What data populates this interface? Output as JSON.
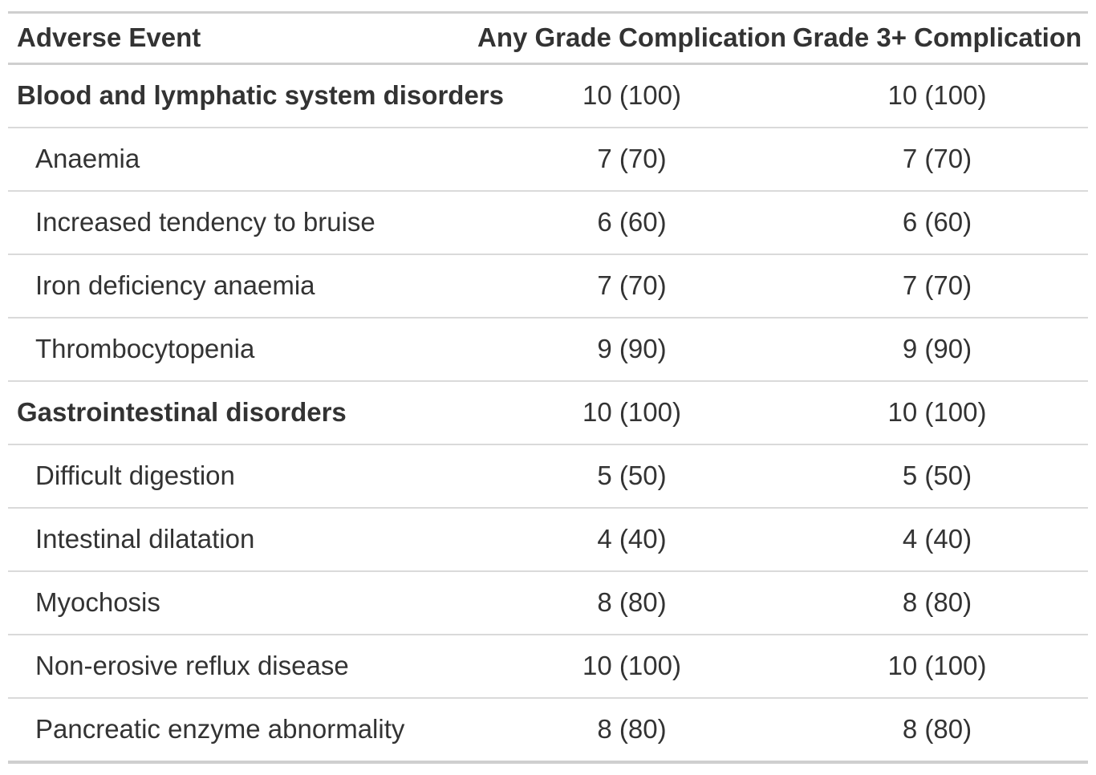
{
  "table": {
    "columns": {
      "event": "Adverse Event",
      "any_grade": "Any Grade Complication",
      "grade3plus": "Grade 3+ Complication"
    },
    "rows": [
      {
        "label": "Blood and lymphatic system disorders",
        "level": "group",
        "any_grade": "10 (100)",
        "grade3plus": "10 (100)"
      },
      {
        "label": "Anaemia",
        "level": "item",
        "any_grade": "7 (70)",
        "grade3plus": "7 (70)"
      },
      {
        "label": "Increased tendency to bruise",
        "level": "item",
        "any_grade": "6 (60)",
        "grade3plus": "6 (60)"
      },
      {
        "label": "Iron deficiency anaemia",
        "level": "item",
        "any_grade": "7 (70)",
        "grade3plus": "7 (70)"
      },
      {
        "label": "Thrombocytopenia",
        "level": "item",
        "any_grade": "9 (90)",
        "grade3plus": "9 (90)"
      },
      {
        "label": "Gastrointestinal disorders",
        "level": "group",
        "any_grade": "10 (100)",
        "grade3plus": "10 (100)"
      },
      {
        "label": "Difficult digestion",
        "level": "item",
        "any_grade": "5 (50)",
        "grade3plus": "5 (50)"
      },
      {
        "label": "Intestinal dilatation",
        "level": "item",
        "any_grade": "4 (40)",
        "grade3plus": "4 (40)"
      },
      {
        "label": "Myochosis",
        "level": "item",
        "any_grade": "8 (80)",
        "grade3plus": "8 (80)"
      },
      {
        "label": "Non-erosive reflux disease",
        "level": "item",
        "any_grade": "10 (100)",
        "grade3plus": "10 (100)"
      },
      {
        "label": "Pancreatic enzyme abnormality",
        "level": "item",
        "any_grade": "8 (80)",
        "grade3plus": "8 (80)"
      }
    ]
  },
  "colors": {
    "text": "#333333",
    "border_strong": "#cfcfcf",
    "border_light": "#dadada",
    "background": "#ffffff"
  }
}
